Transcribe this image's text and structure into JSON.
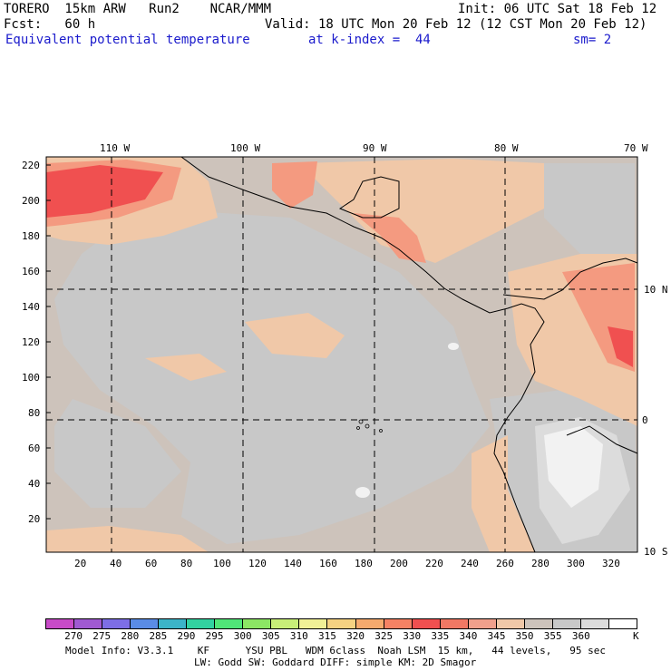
{
  "header": {
    "line1_left": "TORERO  15km ARW   Run2    NCAR/MMM",
    "line1_right": "Init: 06 UTC Sat 18 Feb 12",
    "line2_left": "Fcst:   60 h",
    "line2_right": "Valid: 18 UTC Mon 20 Feb 12 (12 CST Mon 20 Feb 12)",
    "line3_field": "Equivalent potential temperature",
    "line3_level": "at k-index =  44",
    "line3_sm": "sm= 2"
  },
  "map": {
    "top_lon_labels": [
      "110 W",
      "100 W",
      "90 W",
      "80 W",
      "70 W"
    ],
    "right_lat_labels": [
      "10 N",
      "0",
      "10 S"
    ],
    "y_ticks": [
      "220",
      "200",
      "180",
      "160",
      "140",
      "120",
      "100",
      "80",
      "60",
      "40",
      "20"
    ],
    "x_ticks": [
      "20",
      "40",
      "60",
      "80",
      "100",
      "120",
      "140",
      "160",
      "180",
      "200",
      "220",
      "240",
      "260",
      "280",
      "300",
      "320"
    ],
    "colors": {
      "background_field": "#cdc3bb",
      "grey_field": "#c8c8c8",
      "light_grey": "#dcdcdc",
      "white_field": "#f2f2f2",
      "peach": "#f0c8a8",
      "salmon": "#f49a80",
      "red": "#f05050"
    }
  },
  "colorbar": {
    "labels": [
      "270",
      "275",
      "280",
      "285",
      "290",
      "295",
      "300",
      "305",
      "310",
      "315",
      "320",
      "325",
      "330",
      "335",
      "340",
      "345",
      "350",
      "355",
      "360"
    ],
    "unit": "K",
    "colors": [
      "#c84bc8",
      "#a05ad2",
      "#7d6ee6",
      "#5a8ce6",
      "#3cb4c8",
      "#32d2a0",
      "#50e678",
      "#8ce664",
      "#c8ee78",
      "#f0f096",
      "#f5d282",
      "#f5aa6e",
      "#f58264",
      "#f05050",
      "#f07864",
      "#f0a08c",
      "#f0c8a8",
      "#cdc3bb",
      "#c8c8c8",
      "#dcdcdc",
      "#ffffff"
    ]
  },
  "footer": {
    "line1": "Model Info: V3.3.1    KF      YSU PBL   WDM 6class  Noah LSM  15 km,   44 levels,   95 sec",
    "line2": "LW: Godd SW: Goddard DIFF: simple KM: 2D Smagor"
  }
}
